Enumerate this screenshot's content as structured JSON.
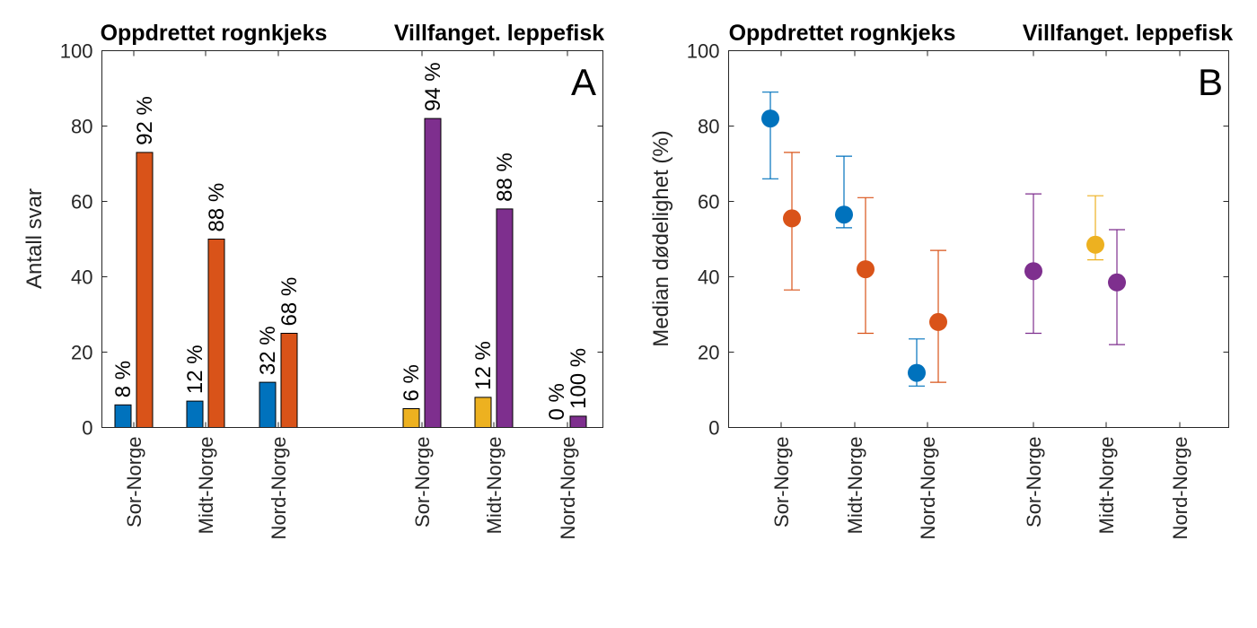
{
  "colors": {
    "blue": "#0072BD",
    "orange": "#D95319",
    "yellow": "#EDB120",
    "purple": "#7E2F8E",
    "axis": "#262626"
  },
  "chart_data": [
    {
      "type": "bar",
      "panel_label": "A",
      "group_titles": [
        "Oppdrettet rognkjeks",
        "Villfanget. leppefisk"
      ],
      "categories": [
        "Sor-Norge",
        "Midt-Norge",
        "Nord-Norge",
        "Sor-Norge",
        "Midt-Norge",
        "Nord-Norge"
      ],
      "ylabel": "Antall svar",
      "xlabel": "",
      "ylim": [
        0,
        100
      ],
      "yticks": [
        0,
        20,
        40,
        60,
        80,
        100
      ],
      "grid": false,
      "series": [
        {
          "values": [
            6,
            7,
            12,
            5,
            8,
            0
          ],
          "colors": [
            "#0072BD",
            "#0072BD",
            "#0072BD",
            "#EDB120",
            "#EDB120",
            "#EDB120"
          ],
          "labels": [
            "8 %",
            "12 %",
            "32 %",
            "6 %",
            "12 %",
            "0 %"
          ]
        },
        {
          "values": [
            73,
            50,
            25,
            82,
            58,
            3
          ],
          "colors": [
            "#D95319",
            "#D95319",
            "#D95319",
            "#7E2F8E",
            "#7E2F8E",
            "#7E2F8E"
          ],
          "labels": [
            "92 %",
            "88 %",
            "68 %",
            "94 %",
            "88 %",
            "100 %"
          ]
        }
      ]
    },
    {
      "type": "scatter",
      "panel_label": "B",
      "group_titles": [
        "Oppdrettet rognkjeks",
        "Villfanget. leppefisk"
      ],
      "categories": [
        "Sor-Norge",
        "Midt-Norge",
        "Nord-Norge",
        "Sor-Norge",
        "Midt-Norge",
        "Nord-Norge"
      ],
      "ylabel": "Median dødelighet (%)",
      "xlabel": "",
      "ylim": [
        0,
        100
      ],
      "yticks": [
        0,
        20,
        40,
        60,
        80,
        100
      ],
      "grid": false,
      "points": [
        {
          "category": 0,
          "offset": -1,
          "y": 82,
          "low": 66,
          "high": 89,
          "color": "#0072BD"
        },
        {
          "category": 0,
          "offset": 1,
          "y": 55.5,
          "low": 36.5,
          "high": 73,
          "color": "#D95319"
        },
        {
          "category": 1,
          "offset": -1,
          "y": 56.5,
          "low": 53,
          "high": 72,
          "color": "#0072BD"
        },
        {
          "category": 1,
          "offset": 1,
          "y": 42,
          "low": 25,
          "high": 61,
          "color": "#D95319"
        },
        {
          "category": 2,
          "offset": -1,
          "y": 14.5,
          "low": 11,
          "high": 23.5,
          "color": "#0072BD"
        },
        {
          "category": 2,
          "offset": 1,
          "y": 28,
          "low": 12,
          "high": 47,
          "color": "#D95319"
        },
        {
          "category": 3,
          "offset": 0,
          "y": 41.5,
          "low": 25,
          "high": 62,
          "color": "#7E2F8E"
        },
        {
          "category": 4,
          "offset": -1,
          "y": 48.5,
          "low": 44.5,
          "high": 61.5,
          "color": "#EDB120"
        },
        {
          "category": 4,
          "offset": 1,
          "y": 38.5,
          "low": 22,
          "high": 52.5,
          "color": "#7E2F8E"
        }
      ]
    }
  ]
}
